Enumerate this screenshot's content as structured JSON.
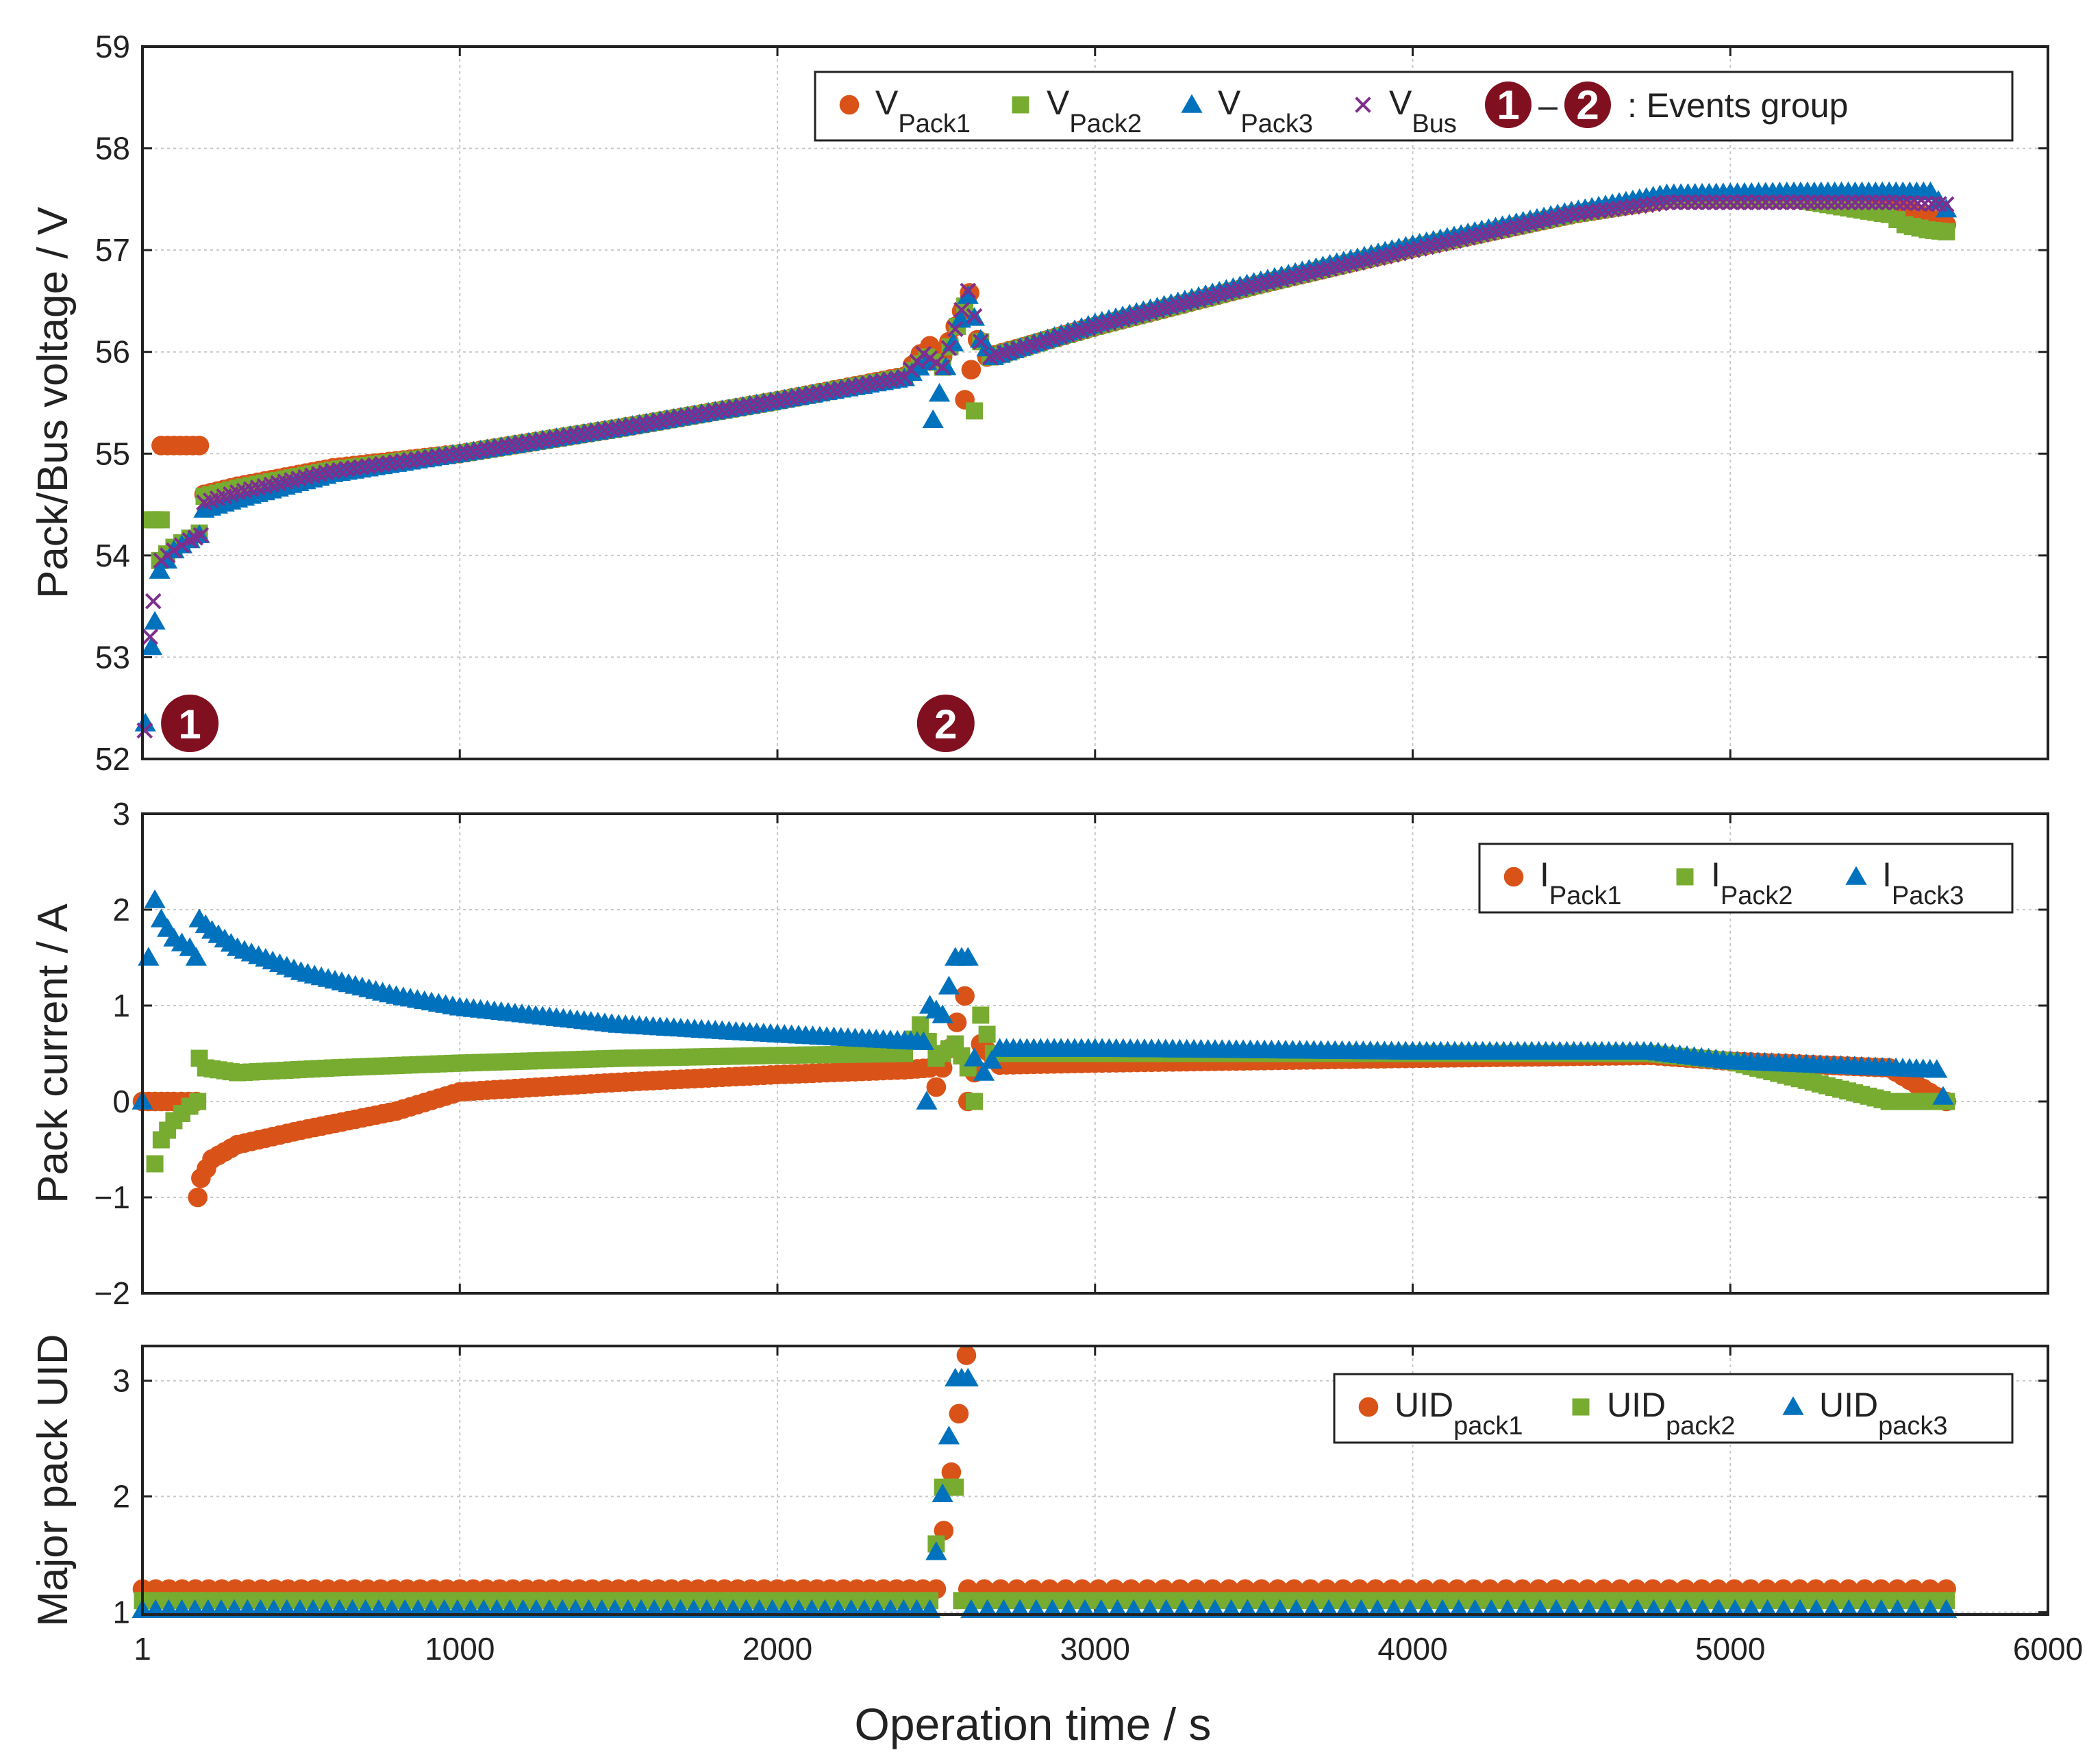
{
  "figure": {
    "xlabel": "Operation time / s",
    "x_ticks": [
      "1",
      "1000",
      "2000",
      "3000",
      "4000",
      "5000",
      "6000"
    ]
  },
  "chart_data": [
    {
      "type": "scatter",
      "id": "voltage",
      "ylabel": "Pack/Bus voltage / V",
      "xlim": [
        1,
        6000
      ],
      "ylim": [
        52,
        59
      ],
      "y_ticks": [
        "52",
        "53",
        "54",
        "55",
        "56",
        "57",
        "58",
        "59"
      ],
      "grid": true,
      "legend_position": "top-right",
      "legend": [
        {
          "main": "V",
          "sub": "Pack1",
          "marker": "circle",
          "color": "#d95319"
        },
        {
          "main": "V",
          "sub": "Pack2",
          "marker": "square",
          "color": "#77ac30"
        },
        {
          "main": "V",
          "sub": "Pack3",
          "marker": "triangle",
          "color": "#0072bd"
        },
        {
          "main": "V",
          "sub": "Bus",
          "marker": "x",
          "color": "#7e2f8e"
        }
      ],
      "events_legend": {
        "from": "1",
        "dash": "–",
        "to": "2",
        "text": ": Events group"
      },
      "events": [
        {
          "label": "1",
          "x": 150,
          "y": 52.35
        },
        {
          "label": "2",
          "x": 2530,
          "y": 52.35
        }
      ],
      "series": [
        {
          "name": "VPack1",
          "color": "#d95319",
          "marker": "circle",
          "points": [
            [
              60,
              55.08
            ],
            [
              100,
              55.08
            ],
            [
              140,
              55.08
            ],
            [
              180,
              55.08
            ],
            [
              195,
              54.6
            ],
            [
              300,
              54.68
            ],
            [
              600,
              54.86
            ],
            [
              1000,
              55.0
            ],
            [
              1500,
              55.25
            ],
            [
              2000,
              55.52
            ],
            [
              2400,
              55.76
            ],
            [
              2450,
              55.98
            ],
            [
              2480,
              56.06
            ],
            [
              2520,
              55.95
            ],
            [
              2580,
              56.4
            ],
            [
              2605,
              56.58
            ],
            [
              2590,
              55.53
            ],
            [
              2630,
              56.12
            ],
            [
              2660,
              55.95
            ],
            [
              3000,
              56.25
            ],
            [
              3500,
              56.65
            ],
            [
              4000,
              57.02
            ],
            [
              4500,
              57.35
            ],
            [
              4800,
              57.5
            ],
            [
              5200,
              57.5
            ],
            [
              5500,
              57.48
            ],
            [
              5620,
              57.32
            ],
            [
              5680,
              57.25
            ]
          ]
        },
        {
          "name": "VPack2",
          "color": "#77ac30",
          "marker": "square",
          "points": [
            [
              25,
              54.35
            ],
            [
              60,
              54.35
            ],
            [
              55,
              53.95
            ],
            [
              100,
              54.08
            ],
            [
              150,
              54.17
            ],
            [
              180,
              54.22
            ],
            [
              195,
              54.58
            ],
            [
              300,
              54.66
            ],
            [
              600,
              54.84
            ],
            [
              1000,
              55.0
            ],
            [
              1500,
              55.25
            ],
            [
              2000,
              55.52
            ],
            [
              2400,
              55.75
            ],
            [
              2470,
              55.95
            ],
            [
              2520,
              55.85
            ],
            [
              2590,
              56.45
            ],
            [
              2620,
              55.42
            ],
            [
              2640,
              56.1
            ],
            [
              2670,
              55.95
            ],
            [
              3000,
              56.25
            ],
            [
              3500,
              56.65
            ],
            [
              4000,
              57.02
            ],
            [
              4500,
              57.35
            ],
            [
              4800,
              57.5
            ],
            [
              5200,
              57.5
            ],
            [
              5500,
              57.35
            ],
            [
              5550,
              57.25
            ],
            [
              5620,
              57.2
            ],
            [
              5680,
              57.18
            ]
          ]
        },
        {
          "name": "VPack3",
          "color": "#0072bd",
          "marker": "triangle",
          "points": [
            [
              10,
              52.35
            ],
            [
              30,
              53.1
            ],
            [
              40,
              53.35
            ],
            [
              55,
              53.85
            ],
            [
              100,
              54.05
            ],
            [
              150,
              54.15
            ],
            [
              180,
              54.2
            ],
            [
              195,
              54.45
            ],
            [
              300,
              54.55
            ],
            [
              600,
              54.8
            ],
            [
              1000,
              55.0
            ],
            [
              1500,
              55.25
            ],
            [
              2000,
              55.52
            ],
            [
              2400,
              55.74
            ],
            [
              2470,
              55.9
            ],
            [
              2490,
              55.33
            ],
            [
              2530,
              55.85
            ],
            [
              2600,
              56.55
            ],
            [
              2640,
              56.12
            ],
            [
              2680,
              55.95
            ],
            [
              3000,
              56.28
            ],
            [
              3500,
              56.68
            ],
            [
              4000,
              57.05
            ],
            [
              4500,
              57.38
            ],
            [
              4800,
              57.55
            ],
            [
              5200,
              57.57
            ],
            [
              5500,
              57.57
            ],
            [
              5630,
              57.57
            ],
            [
              5680,
              57.4
            ]
          ]
        },
        {
          "name": "VBus",
          "color": "#7e2f8e",
          "marker": "x",
          "points": [
            [
              8,
              52.28
            ],
            [
              25,
              53.2
            ],
            [
              35,
              53.55
            ],
            [
              60,
              53.95
            ],
            [
              100,
              54.05
            ],
            [
              150,
              54.15
            ],
            [
              185,
              54.2
            ],
            [
              195,
              54.52
            ],
            [
              300,
              54.62
            ],
            [
              600,
              54.83
            ],
            [
              1000,
              55.0
            ],
            [
              1500,
              55.25
            ],
            [
              2000,
              55.52
            ],
            [
              2400,
              55.75
            ],
            [
              2460,
              55.98
            ],
            [
              2520,
              55.85
            ],
            [
              2600,
              56.6
            ],
            [
              2640,
              56.1
            ],
            [
              2670,
              55.95
            ],
            [
              3000,
              56.25
            ],
            [
              3500,
              56.65
            ],
            [
              4000,
              57.0
            ],
            [
              4500,
              57.35
            ],
            [
              4800,
              57.47
            ],
            [
              5200,
              57.47
            ],
            [
              5500,
              57.47
            ],
            [
              5680,
              57.45
            ]
          ]
        }
      ]
    },
    {
      "type": "scatter",
      "id": "current",
      "ylabel": "Pack current / A",
      "xlim": [
        1,
        6000
      ],
      "ylim": [
        -2,
        3
      ],
      "y_ticks": [
        "−2",
        "−1",
        "0",
        "1",
        "2",
        "3"
      ],
      "grid": true,
      "legend_position": "top-right",
      "legend": [
        {
          "main": "I",
          "sub": "Pack1",
          "marker": "circle",
          "color": "#d95319"
        },
        {
          "main": "I",
          "sub": "Pack2",
          "marker": "square",
          "color": "#77ac30"
        },
        {
          "main": "I",
          "sub": "Pack3",
          "marker": "triangle",
          "color": "#0072bd"
        }
      ],
      "series": [
        {
          "name": "IPack1",
          "color": "#d95319",
          "marker": "circle",
          "points": [
            [
              1,
              0
            ],
            [
              100,
              0
            ],
            [
              170,
              0
            ],
            [
              175,
              -1.0
            ],
            [
              185,
              -0.8
            ],
            [
              220,
              -0.6
            ],
            [
              300,
              -0.45
            ],
            [
              500,
              -0.3
            ],
            [
              800,
              -0.1
            ],
            [
              1000,
              0.1
            ],
            [
              1500,
              0.2
            ],
            [
              2000,
              0.28
            ],
            [
              2400,
              0.33
            ],
            [
              2480,
              0.35
            ],
            [
              2500,
              0.15
            ],
            [
              2540,
              0.55
            ],
            [
              2590,
              1.1
            ],
            [
              2600,
              0.0
            ],
            [
              2640,
              0.6
            ],
            [
              2700,
              0.38
            ],
            [
              3000,
              0.4
            ],
            [
              4000,
              0.45
            ],
            [
              4750,
              0.48
            ],
            [
              5000,
              0.42
            ],
            [
              5500,
              0.35
            ],
            [
              5650,
              0.05
            ],
            [
              5680,
              0.0
            ]
          ]
        },
        {
          "name": "IPack2",
          "color": "#77ac30",
          "marker": "square",
          "points": [
            [
              40,
              -0.65
            ],
            [
              60,
              -0.4
            ],
            [
              100,
              -0.2
            ],
            [
              150,
              -0.05
            ],
            [
              175,
              0
            ],
            [
              180,
              0.45
            ],
            [
              200,
              0.35
            ],
            [
              300,
              0.3
            ],
            [
              600,
              0.35
            ],
            [
              1000,
              0.4
            ],
            [
              1500,
              0.45
            ],
            [
              2000,
              0.48
            ],
            [
              2400,
              0.5
            ],
            [
              2450,
              0.8
            ],
            [
              2500,
              0.45
            ],
            [
              2560,
              0.6
            ],
            [
              2600,
              0.35
            ],
            [
              2620,
              0.0
            ],
            [
              2640,
              0.9
            ],
            [
              2680,
              0.5
            ],
            [
              3000,
              0.5
            ],
            [
              4000,
              0.5
            ],
            [
              4750,
              0.5
            ],
            [
              5000,
              0.42
            ],
            [
              5500,
              0.0
            ],
            [
              5650,
              0.0
            ],
            [
              5680,
              0.0
            ]
          ]
        },
        {
          "name": "IPack3",
          "color": "#0072bd",
          "marker": "triangle",
          "points": [
            [
              1,
              0.0
            ],
            [
              20,
              1.5
            ],
            [
              40,
              2.1
            ],
            [
              60,
              1.9
            ],
            [
              100,
              1.7
            ],
            [
              150,
              1.6
            ],
            [
              170,
              1.5
            ],
            [
              180,
              1.9
            ],
            [
              220,
              1.78
            ],
            [
              300,
              1.6
            ],
            [
              500,
              1.35
            ],
            [
              800,
              1.1
            ],
            [
              1000,
              0.98
            ],
            [
              1500,
              0.8
            ],
            [
              2000,
              0.7
            ],
            [
              2400,
              0.63
            ],
            [
              2460,
              0.62
            ],
            [
              2470,
              0.0
            ],
            [
              2480,
              1.0
            ],
            [
              2520,
              0.9
            ],
            [
              2560,
              1.5
            ],
            [
              2600,
              1.5
            ],
            [
              2620,
              0.45
            ],
            [
              2650,
              0.3
            ],
            [
              2700,
              0.55
            ],
            [
              3000,
              0.55
            ],
            [
              4000,
              0.52
            ],
            [
              4750,
              0.52
            ],
            [
              5000,
              0.42
            ],
            [
              5500,
              0.35
            ],
            [
              5650,
              0.33
            ],
            [
              5670,
              0.05
            ]
          ]
        }
      ]
    },
    {
      "type": "scatter",
      "id": "uid",
      "ylabel": "Major pack UID",
      "xlim": [
        1,
        6000
      ],
      "ylim": [
        0.98,
        3.3
      ],
      "y_ticks": [
        "1",
        "2",
        "3"
      ],
      "grid": true,
      "legend_position": "top-right",
      "legend": [
        {
          "main": "UID",
          "sub": "pack1",
          "marker": "circle",
          "color": "#d95319"
        },
        {
          "main": "UID",
          "sub": "pack2",
          "marker": "square",
          "color": "#77ac30"
        },
        {
          "main": "UID",
          "sub": "pack3",
          "marker": "triangle",
          "color": "#0072bd"
        }
      ],
      "series": [
        {
          "name": "UIDpack1",
          "color": "#d95319",
          "marker": "circle",
          "points": [
            [
              1,
              1.2
            ],
            [
              2500,
              1.2
            ],
            [
              2595,
              3.22
            ],
            [
              2600,
              1.2
            ],
            [
              5680,
              1.2
            ]
          ]
        },
        {
          "name": "UIDpack2",
          "color": "#77ac30",
          "marker": "square",
          "points": [
            [
              1,
              1.1
            ],
            [
              2480,
              1.1
            ],
            [
              2520,
              2.08
            ],
            [
              2560,
              2.08
            ],
            [
              2580,
              1.1
            ],
            [
              5680,
              1.1
            ]
          ]
        },
        {
          "name": "UIDpack3",
          "color": "#0072bd",
          "marker": "triangle",
          "points": [
            [
              1,
              1.02
            ],
            [
              2480,
              1.02
            ],
            [
              2520,
              2.02
            ],
            [
              2560,
              3.02
            ],
            [
              2600,
              3.02
            ],
            [
              2610,
              1.02
            ],
            [
              5680,
              1.02
            ]
          ]
        }
      ]
    }
  ]
}
